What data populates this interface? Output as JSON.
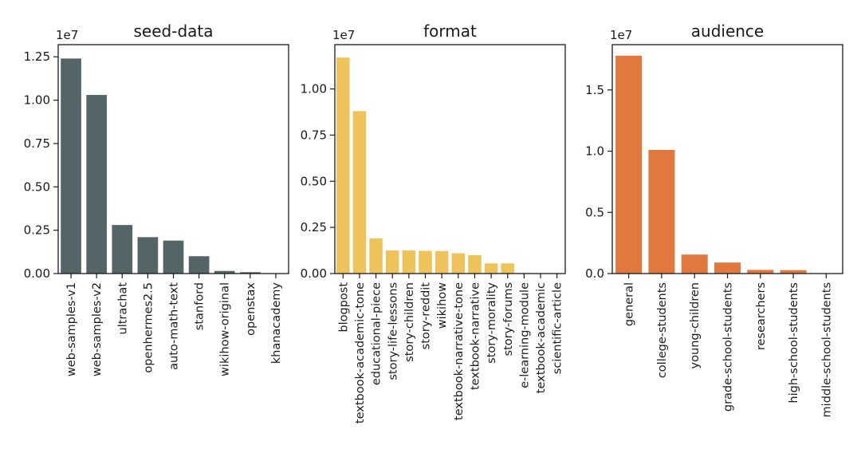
{
  "chart_data": [
    {
      "type": "bar",
      "title": "seed-data",
      "scale_label": "1e7",
      "color": "#546568",
      "categories": [
        "web-samples-v1",
        "web-samples-v2",
        "ultrachat",
        "openhermes2.5",
        "auto-math-text",
        "stanford",
        "wikihow-original",
        "openstax",
        "khanacademy"
      ],
      "values": [
        1.24,
        1.03,
        0.28,
        0.21,
        0.19,
        0.1,
        0.015,
        0.008,
        0.002
      ],
      "ylim": [
        0,
        1.32
      ],
      "yticks": [
        0,
        0.25,
        0.5,
        0.75,
        1.0,
        1.25
      ],
      "ytick_labels": [
        "0.00",
        "0.25",
        "0.50",
        "0.75",
        "1.00",
        "1.25"
      ],
      "xlabel": "",
      "ylabel": ""
    },
    {
      "type": "bar",
      "title": "format",
      "scale_label": "1e7",
      "color": "#eec35c",
      "categories": [
        "blogpost",
        "textbook-academic-tone",
        "educational-piece",
        "story-life-lessons",
        "story-children",
        "story-reddit",
        "wikihow",
        "textbook-narrative-tone",
        "textbook-narrative",
        "story-morality",
        "story-forums",
        "e-learning-module",
        "textbook-academic",
        "scientific-article"
      ],
      "values": [
        1.17,
        0.88,
        0.19,
        0.125,
        0.125,
        0.123,
        0.122,
        0.11,
        0.1,
        0.055,
        0.055,
        0.003,
        0.002,
        0.002
      ],
      "ylim": [
        0,
        1.24
      ],
      "yticks": [
        0,
        0.25,
        0.5,
        0.75,
        1.0
      ],
      "ytick_labels": [
        "0.00",
        "0.25",
        "0.50",
        "0.75",
        "1.00"
      ],
      "xlabel": "",
      "ylabel": ""
    },
    {
      "type": "bar",
      "title": "audience",
      "scale_label": "1e7",
      "color": "#e07840",
      "categories": [
        "general",
        "college-students",
        "young-children",
        "grade-school-students",
        "researchers",
        "high-school-students",
        "middle-school-students"
      ],
      "values": [
        1.78,
        1.01,
        0.155,
        0.09,
        0.03,
        0.028,
        0.002
      ],
      "ylim": [
        0,
        1.87
      ],
      "yticks": [
        0,
        0.5,
        1.0,
        1.5
      ],
      "ytick_labels": [
        "0.0",
        "0.5",
        "1.0",
        "1.5"
      ],
      "xlabel": "",
      "ylabel": ""
    }
  ]
}
